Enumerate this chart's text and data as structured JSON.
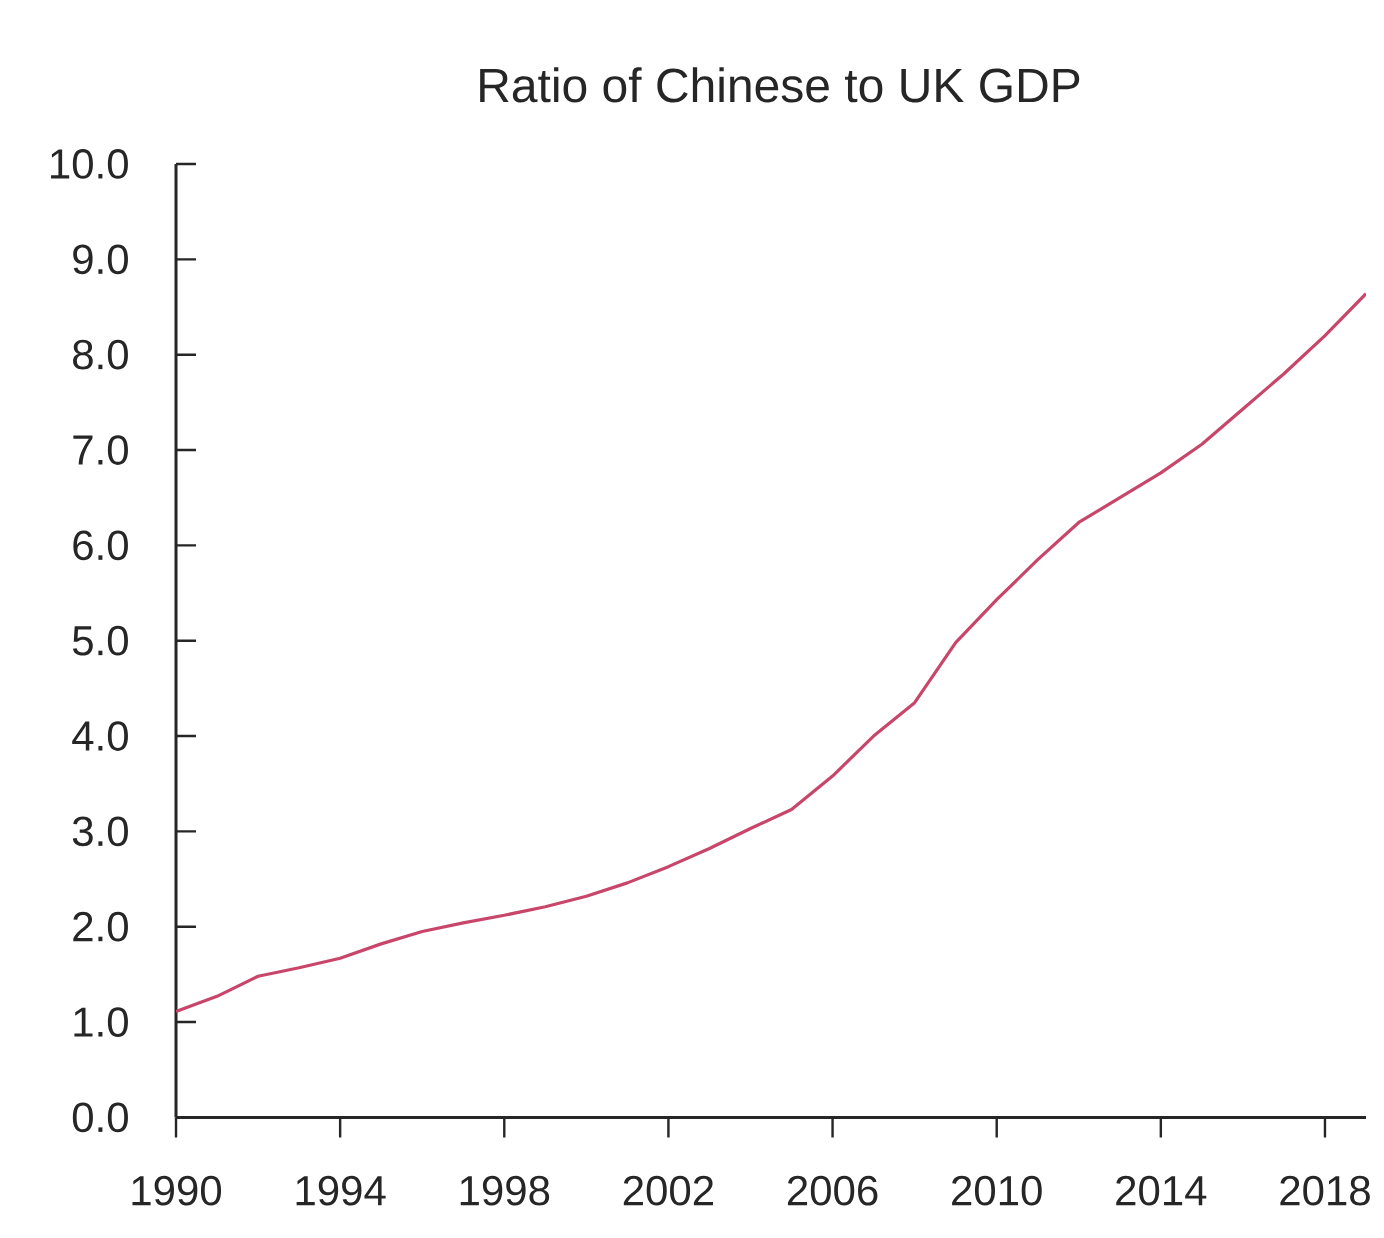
{
  "chart_data": {
    "type": "line",
    "title": "Ratio of Chinese to UK GDP",
    "x": [
      1990,
      1991,
      1992,
      1993,
      1994,
      1995,
      1996,
      1997,
      1998,
      1999,
      2000,
      2001,
      2002,
      2003,
      2004,
      2005,
      2006,
      2007,
      2008,
      2009,
      2010,
      2011,
      2012,
      2013,
      2014,
      2015,
      2016,
      2017,
      2018,
      2019
    ],
    "series": [
      {
        "color": "#c9466b",
        "values": [
          1.11,
          1.27,
          1.48,
          1.57,
          1.67,
          1.82,
          1.95,
          2.04,
          2.12,
          2.21,
          2.32,
          2.46,
          2.63,
          2.82,
          3.03,
          3.23,
          3.58,
          4.0,
          4.35,
          4.98,
          5.43,
          5.85,
          6.24,
          6.5,
          6.76,
          7.06,
          7.43,
          7.8,
          8.2,
          8.64
        ]
      }
    ],
    "xlim": [
      1990,
      2019
    ],
    "xticks": [
      1990,
      1994,
      1998,
      2002,
      2006,
      2010,
      2014,
      2018
    ],
    "ylim": [
      0,
      10
    ],
    "yticks": [
      {
        "value": 0,
        "label": "0.0"
      },
      {
        "value": 1,
        "label": "1.0"
      },
      {
        "value": 2,
        "label": "2.0"
      },
      {
        "value": 3,
        "label": "3.0"
      },
      {
        "value": 4,
        "label": "4.0"
      },
      {
        "value": 5,
        "label": "5.0"
      },
      {
        "value": 6,
        "label": "6.0"
      },
      {
        "value": 7,
        "label": "7.0"
      },
      {
        "value": 8,
        "label": "8.0"
      },
      {
        "value": 9,
        "label": "9.0"
      },
      {
        "value": 10,
        "label": "10.0"
      }
    ],
    "marker": "none",
    "line_style": "solid"
  }
}
